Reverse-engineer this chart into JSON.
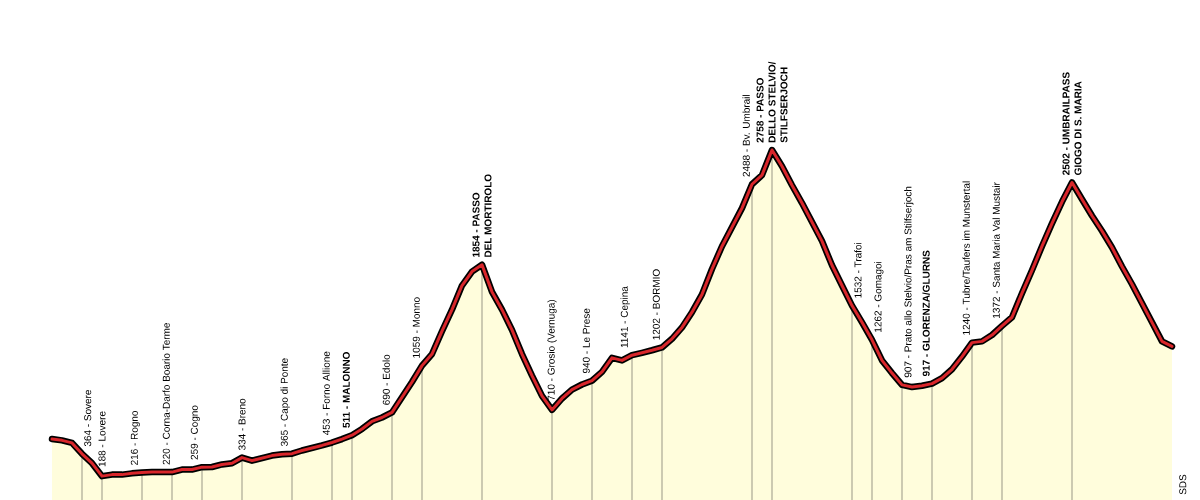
{
  "chart_data": {
    "type": "area",
    "color": "#d8262b",
    "grid": "x",
    "categories": [
      null,
      null,
      null,
      null,
      null,
      null,
      null,
      null,
      null,
      null,
      null,
      null,
      null,
      null,
      null,
      null,
      null,
      null,
      null,
      null,
      null,
      null,
      null,
      null,
      null,
      null,
      null,
      null,
      null,
      null,
      null,
      null,
      null,
      null,
      null,
      null,
      null,
      null,
      null,
      null,
      null,
      null,
      null,
      null,
      null,
      null,
      null,
      null,
      null,
      null,
      null,
      null,
      null,
      null,
      null,
      null,
      null,
      null,
      null,
      null,
      null,
      null,
      null,
      null,
      null,
      null,
      null,
      null,
      null,
      null,
      null,
      null,
      null,
      null,
      null,
      null,
      null,
      null,
      null,
      null,
      null,
      null,
      null,
      null,
      null,
      null,
      null,
      null,
      null,
      null,
      null,
      null,
      null,
      null,
      null,
      null,
      null,
      null,
      null,
      null,
      null,
      null,
      null,
      null,
      null,
      null,
      null,
      null,
      null,
      null,
      null,
      null,
      null
    ],
    "values": [
      480,
      470,
      450,
      364,
      290,
      188,
      200,
      200,
      210,
      216,
      220,
      220,
      220,
      240,
      240,
      259,
      260,
      280,
      290,
      334,
      310,
      330,
      350,
      360,
      365,
      390,
      410,
      430,
      453,
      480,
      511,
      560,
      620,
      650,
      690,
      810,
      930,
      1059,
      1150,
      1330,
      1500,
      1690,
      1800,
      1854,
      1640,
      1500,
      1340,
      1150,
      980,
      820,
      710,
      800,
      870,
      910,
      940,
      1010,
      1120,
      1100,
      1141,
      1160,
      1180,
      1202,
      1270,
      1360,
      1480,
      1620,
      1820,
      2000,
      2150,
      2300,
      2488,
      2560,
      2758,
      2630,
      2480,
      2340,
      2190,
      2040,
      1850,
      1690,
      1532,
      1400,
      1262,
      1100,
      1000,
      907,
      890,
      900,
      917,
      960,
      1030,
      1130,
      1240,
      1250,
      1300,
      1372,
      1440,
      1630,
      1810,
      2000,
      2180,
      2350,
      2502,
      2370,
      2240,
      2120,
      1990,
      1840,
      1700,
      1550,
      1400,
      1250,
      1210
    ],
    "value_labels": [
      null,
      null,
      null,
      "364 - Sovere",
      null,
      "188 - Lovere",
      null,
      null,
      null,
      "216 - Rogno",
      null,
      null,
      "220 - Corna-Darfo Boario Terme",
      null,
      null,
      "259 - Cogno",
      null,
      null,
      null,
      "334 - Breno",
      null,
      null,
      null,
      null,
      "365 - Capo di Ponte",
      null,
      null,
      null,
      "453 - Forno Allione",
      null,
      "**511 - MALONNO**",
      null,
      null,
      null,
      "690 - Edolo",
      null,
      null,
      "1059 - Monno",
      null,
      null,
      null,
      null,
      null,
      "**1854 - PASSO**\n**DEL MORTIROLO**",
      null,
      null,
      null,
      null,
      null,
      null,
      "710 - Grosio (Vernuga)",
      null,
      null,
      null,
      "940 - Le Prese",
      null,
      null,
      null,
      "1141 - Cepina",
      null,
      null,
      "1202 - BORMIO",
      null,
      null,
      null,
      null,
      null,
      null,
      null,
      null,
      "2488 - Bv. Umbrail",
      null,
      "**2758 - PASSO**\n**DELLO STELVIO/**\n**STILFSERJOCH**",
      null,
      null,
      null,
      null,
      null,
      null,
      null,
      "1532 - Trafoi",
      null,
      "1262 - Gomagoi",
      null,
      null,
      "907 - Prato allo Stelvio/Pras am Stilfserjoch",
      null,
      null,
      "**917 - GLORENZA/GLURNS**",
      null,
      null,
      null,
      "1240 - Tubre/Taufers im Munstertal",
      null,
      null,
      "1372 - Santa Maria Val Mustair",
      null,
      null,
      null,
      null,
      null,
      null,
      "**2502 - UMBRAILPASS**\n**GIOGO DI S. MARIA**",
      null,
      null,
      null,
      null,
      null,
      null,
      null,
      null,
      null,
      null
    ],
    "annotations": [
      "SDS"
    ]
  }
}
